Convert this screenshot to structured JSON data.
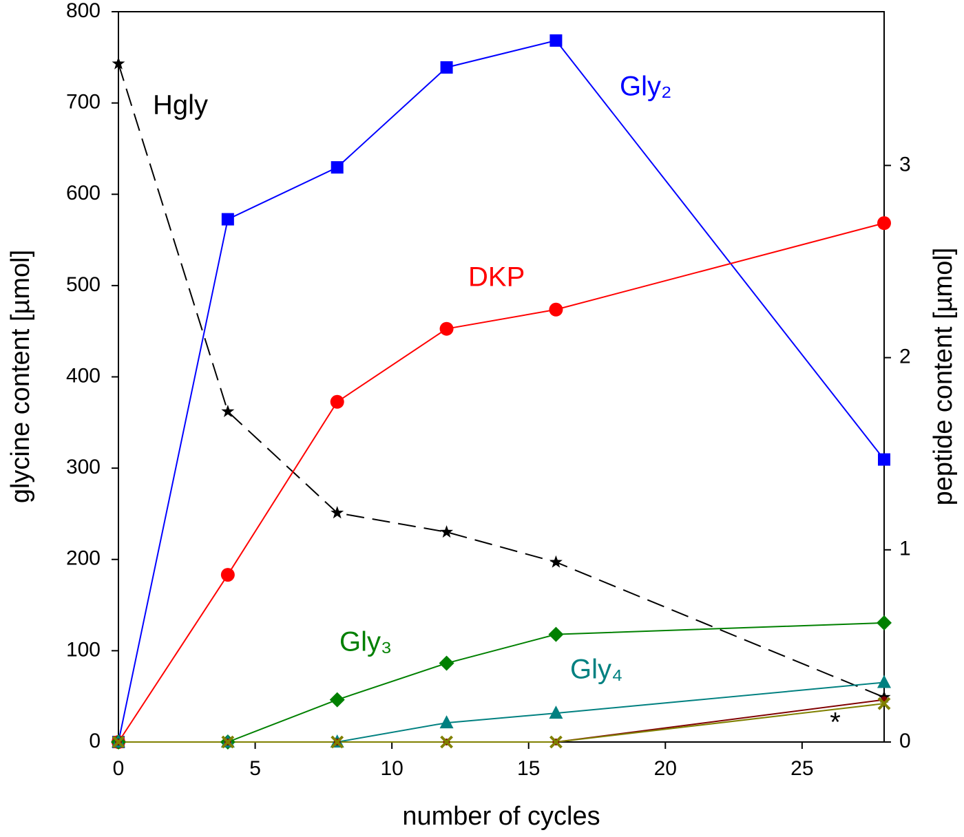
{
  "chart_data": {
    "type": "line",
    "x_label": "number of cycles",
    "y_label": "glycine content [µmol]",
    "y2_label": "peptide content [µmol]",
    "x": [
      0,
      4,
      8,
      12,
      16,
      28
    ],
    "xlim": [
      0,
      28
    ],
    "xticks": [
      0,
      5,
      10,
      15,
      20,
      25
    ],
    "ylim": [
      0,
      800
    ],
    "yticks": [
      0,
      100,
      200,
      300,
      400,
      500,
      600,
      700,
      800
    ],
    "y2lim": [
      0,
      3.8
    ],
    "y2ticks": [
      0,
      1,
      2,
      3
    ],
    "series": [
      {
        "name": "Hgly",
        "color": "#000000",
        "marker": "star",
        "line_style": "dashed",
        "values": [
          743,
          362,
          251,
          230,
          197,
          49
        ]
      },
      {
        "name": "Gly₂",
        "color": "#0000ff",
        "marker": "square",
        "axis": "y2",
        "values": [
          0,
          2.72,
          2.99,
          3.51,
          3.65,
          1.47
        ]
      },
      {
        "name": "DKP",
        "color": "#ff0000",
        "marker": "circle",
        "axis": "y2",
        "values": [
          0,
          0.87,
          1.77,
          2.15,
          2.25,
          2.7
        ]
      },
      {
        "name": "Gly₃",
        "color": "#008000",
        "marker": "diamond",
        "axis": "y2",
        "values": [
          0,
          0,
          0.22,
          0.41,
          0.56,
          0.62
        ]
      },
      {
        "name": "Gly₄",
        "color": "#008080",
        "marker": "triangle",
        "axis": "y2",
        "values": [
          0,
          0,
          0,
          0.1,
          0.15,
          0.31
        ]
      },
      {
        "color": "#800000",
        "marker": "circle-small",
        "axis": "y2",
        "values": [
          0,
          0,
          0,
          0,
          0,
          0.22
        ]
      },
      {
        "name": "*",
        "color": "#808000",
        "marker": "x",
        "axis": "y2",
        "values": [
          0,
          0,
          0,
          0,
          0,
          0.2
        ]
      }
    ]
  }
}
